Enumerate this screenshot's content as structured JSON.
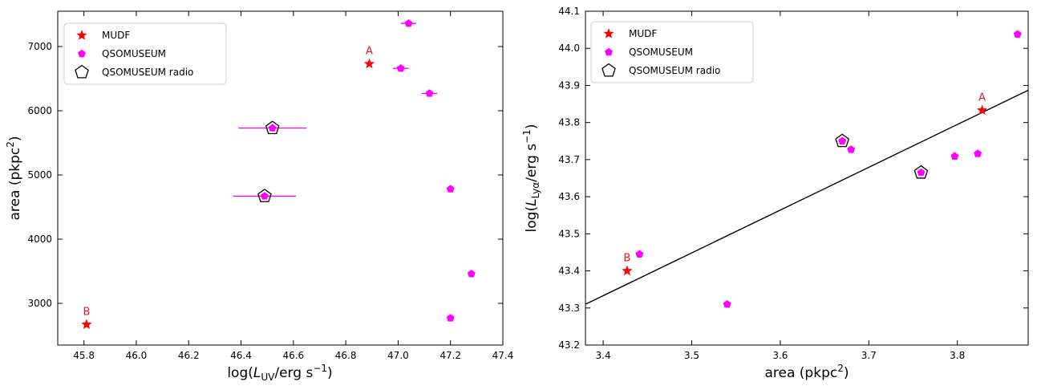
{
  "colors": {
    "mudf": "#ff0000",
    "qso": "#ff00ff",
    "radio": "#000000",
    "fit": "#000000"
  },
  "legend_labels": [
    "MUDF",
    "QSOMUSEUM",
    "QSOMUSEUM radio"
  ],
  "chart_data": [
    {
      "type": "scatter",
      "xlabel": "log(L_UV / erg s^-1)",
      "ylabel": "area (pkpc^2)",
      "xlim": [
        45.7,
        47.4
      ],
      "ylim": [
        2350,
        7550
      ],
      "xticks": [
        "45.8",
        "46.0",
        "46.2",
        "46.4",
        "46.6",
        "46.8",
        "47.0",
        "47.2",
        "47.4"
      ],
      "yticks": [
        "3000",
        "4000",
        "5000",
        "6000",
        "7000"
      ],
      "legend_position": "top-left",
      "series": [
        {
          "name": "MUDF",
          "marker": "star",
          "points": [
            {
              "x": 45.81,
              "y": 2670,
              "label": "B"
            },
            {
              "x": 46.89,
              "y": 6730,
              "label": "A"
            }
          ]
        },
        {
          "name": "QSOMUSEUM",
          "marker": "pentagon",
          "points": [
            {
              "x": 47.04,
              "y": 7360,
              "xerr": 0.03
            },
            {
              "x": 47.01,
              "y": 6660,
              "xerr": 0.03
            },
            {
              "x": 47.12,
              "y": 6270,
              "xerr": 0.03
            },
            {
              "x": 46.52,
              "y": 5730,
              "xerr": 0.13
            },
            {
              "x": 47.2,
              "y": 4780
            },
            {
              "x": 46.49,
              "y": 4670,
              "xerr": 0.12
            },
            {
              "x": 47.28,
              "y": 3460
            },
            {
              "x": 47.2,
              "y": 2770
            }
          ]
        },
        {
          "name": "QSOMUSEUM radio",
          "marker": "pentagon-open",
          "points": [
            {
              "x": 46.52,
              "y": 5730
            },
            {
              "x": 46.49,
              "y": 4670
            }
          ]
        }
      ]
    },
    {
      "type": "scatter",
      "xlabel": "area (pkpc^2)",
      "ylabel": "log(L_Lyα / erg s^-1)",
      "xlim": [
        3.38,
        3.88
      ],
      "ylim": [
        43.2,
        44.1
      ],
      "xticks": [
        "3.4",
        "3.5",
        "3.6",
        "3.7",
        "3.8"
      ],
      "yticks": [
        "43.2",
        "43.3",
        "43.4",
        "43.5",
        "43.6",
        "43.7",
        "43.8",
        "43.9",
        "44.0",
        "44.1"
      ],
      "legend_position": "top-left",
      "series": [
        {
          "name": "MUDF",
          "marker": "star",
          "points": [
            {
              "x": 3.427,
              "y": 43.4,
              "label": "B"
            },
            {
              "x": 3.828,
              "y": 43.833,
              "label": "A"
            }
          ]
        },
        {
          "name": "QSOMUSEUM",
          "marker": "pentagon",
          "points": [
            {
              "x": 3.441,
              "y": 43.445
            },
            {
              "x": 3.54,
              "y": 43.31
            },
            {
              "x": 3.67,
              "y": 43.75
            },
            {
              "x": 3.68,
              "y": 43.727
            },
            {
              "x": 3.759,
              "y": 43.665
            },
            {
              "x": 3.797,
              "y": 43.709
            },
            {
              "x": 3.823,
              "y": 43.716
            },
            {
              "x": 3.868,
              "y": 44.038
            }
          ]
        },
        {
          "name": "QSOMUSEUM radio",
          "marker": "pentagon-open",
          "points": [
            {
              "x": 3.67,
              "y": 43.75
            },
            {
              "x": 3.759,
              "y": 43.665
            }
          ]
        }
      ],
      "fit_line": {
        "x": [
          3.38,
          3.88
        ],
        "y": [
          43.31,
          43.887
        ]
      }
    }
  ]
}
